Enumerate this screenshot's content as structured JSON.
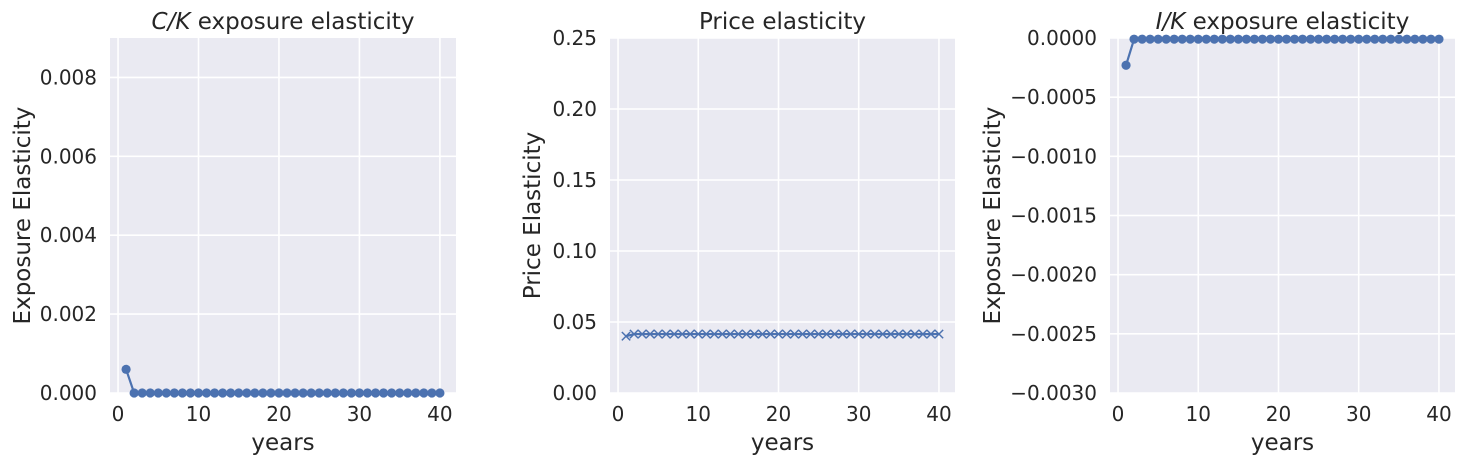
{
  "colors": {
    "plot_bg": "#eaeaf2",
    "grid": "#ffffff",
    "series": "#4c72b0",
    "text": "#262626"
  },
  "chart_data": [
    {
      "type": "line",
      "title": "C/K exposure elasticity",
      "title_parts": {
        "italic": "C/K",
        "rest": " exposure elasticity"
      },
      "xlabel": "years",
      "ylabel": "Exposure Elasticity",
      "xlim": [
        -1,
        42
      ],
      "ylim": [
        0,
        0.009
      ],
      "xticks": [
        0,
        10,
        20,
        30,
        40
      ],
      "xtick_labels": [
        "0",
        "10",
        "20",
        "30",
        "40"
      ],
      "yticks": [
        0,
        0.002,
        0.004,
        0.006,
        0.008
      ],
      "ytick_labels": [
        "0.000",
        "0.002",
        "0.004",
        "0.006",
        "0.008"
      ],
      "marker": "circle",
      "grid": true,
      "series": [
        {
          "x": [
            1,
            2,
            3,
            4,
            5,
            6,
            7,
            8,
            9,
            10,
            11,
            12,
            13,
            14,
            15,
            16,
            17,
            18,
            19,
            20,
            21,
            22,
            23,
            24,
            25,
            26,
            27,
            28,
            29,
            30,
            31,
            32,
            33,
            34,
            35,
            36,
            37,
            38,
            39,
            40
          ],
          "y": [
            0.0006,
            0,
            0,
            0,
            0,
            0,
            0,
            0,
            0,
            0,
            0,
            0,
            0,
            0,
            0,
            0,
            0,
            0,
            0,
            0,
            0,
            0,
            0,
            0,
            0,
            0,
            0,
            0,
            0,
            0,
            0,
            0,
            0,
            0,
            0,
            0,
            0,
            0,
            0,
            0
          ]
        }
      ]
    },
    {
      "type": "line",
      "title": "Price elasticity",
      "title_parts": {
        "italic": "",
        "rest": "Price elasticity"
      },
      "xlabel": "years",
      "ylabel": "Price Elasticity",
      "xlim": [
        -1,
        42
      ],
      "ylim": [
        0,
        0.25
      ],
      "xticks": [
        0,
        10,
        20,
        30,
        40
      ],
      "xtick_labels": [
        "0",
        "10",
        "20",
        "30",
        "40"
      ],
      "yticks": [
        0,
        0.05,
        0.1,
        0.15,
        0.2,
        0.25
      ],
      "ytick_labels": [
        "0.00",
        "0.05",
        "0.10",
        "0.15",
        "0.20",
        "0.25"
      ],
      "marker": "x",
      "grid": true,
      "series": [
        {
          "x": [
            1,
            2,
            3,
            4,
            5,
            6,
            7,
            8,
            9,
            10,
            11,
            12,
            13,
            14,
            15,
            16,
            17,
            18,
            19,
            20,
            21,
            22,
            23,
            24,
            25,
            26,
            27,
            28,
            29,
            30,
            31,
            32,
            33,
            34,
            35,
            36,
            37,
            38,
            39,
            40
          ],
          "y": [
            0.04,
            0.0415,
            0.0415,
            0.0415,
            0.0415,
            0.0415,
            0.0415,
            0.0415,
            0.0415,
            0.0415,
            0.0415,
            0.0415,
            0.0415,
            0.0415,
            0.0415,
            0.0415,
            0.0415,
            0.0415,
            0.0415,
            0.0415,
            0.0415,
            0.0415,
            0.0415,
            0.0415,
            0.0415,
            0.0415,
            0.0415,
            0.0415,
            0.0415,
            0.0415,
            0.0415,
            0.0415,
            0.0415,
            0.0415,
            0.0415,
            0.0415,
            0.0415,
            0.0415,
            0.0415,
            0.0415
          ]
        }
      ]
    },
    {
      "type": "line",
      "title": "I/K exposure elasticity",
      "title_parts": {
        "italic": "I/K",
        "rest": " exposure elasticity"
      },
      "xlabel": "years",
      "ylabel": "Exposure Elasticity",
      "xlim": [
        -1,
        42
      ],
      "ylim": [
        -0.003,
        0
      ],
      "xticks": [
        0,
        10,
        20,
        30,
        40
      ],
      "xtick_labels": [
        "0",
        "10",
        "20",
        "30",
        "40"
      ],
      "yticks": [
        -0.003,
        -0.0025,
        -0.002,
        -0.0015,
        -0.001,
        -0.0005,
        0
      ],
      "ytick_labels": [
        "−0.0030",
        "−0.0025",
        "−0.0020",
        "−0.0015",
        "−0.0010",
        "−0.0005",
        "0.0000"
      ],
      "marker": "circle",
      "grid": true,
      "series": [
        {
          "x": [
            1,
            2,
            3,
            4,
            5,
            6,
            7,
            8,
            9,
            10,
            11,
            12,
            13,
            14,
            15,
            16,
            17,
            18,
            19,
            20,
            21,
            22,
            23,
            24,
            25,
            26,
            27,
            28,
            29,
            30,
            31,
            32,
            33,
            34,
            35,
            36,
            37,
            38,
            39,
            40
          ],
          "y": [
            -0.00023,
            -1e-05,
            -1e-05,
            -1e-05,
            -1e-05,
            -1e-05,
            -1e-05,
            -1e-05,
            -1e-05,
            -1e-05,
            -1e-05,
            -1e-05,
            -1e-05,
            -1e-05,
            -1e-05,
            -1e-05,
            -1e-05,
            -1e-05,
            -1e-05,
            -1e-05,
            -1e-05,
            -1e-05,
            -1e-05,
            -1e-05,
            -1e-05,
            -1e-05,
            -1e-05,
            -1e-05,
            -1e-05,
            -1e-05,
            -1e-05,
            -1e-05,
            -1e-05,
            -1e-05,
            -1e-05,
            -1e-05,
            -1e-05,
            -1e-05,
            -1e-05,
            -1e-05
          ]
        }
      ]
    }
  ]
}
